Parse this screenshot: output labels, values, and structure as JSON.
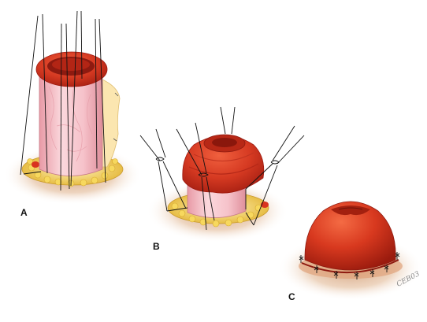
{
  "figure": {
    "description_labels": [
      "A",
      "B",
      "C"
    ],
    "signature": "CEB03"
  },
  "panels": [
    {
      "id": "A",
      "label": "A"
    },
    {
      "id": "B",
      "label": "B"
    },
    {
      "id": "C",
      "label": "C"
    }
  ],
  "colors": {
    "skin_shadow": "#d9b49a",
    "fat": "#f2d16b",
    "mucosa_red": "#d9331f",
    "mucosa_dark": "#9e1a10",
    "bowel_pink": "#f4b7bf",
    "bowel_light": "#fbe0e3",
    "suture": "#111111"
  }
}
